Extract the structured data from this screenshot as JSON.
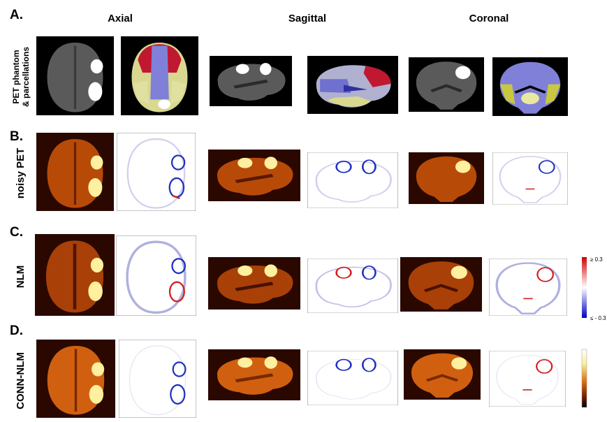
{
  "columns": [
    "Axial",
    "Sagittal",
    "Coronal"
  ],
  "panels": [
    {
      "label": "A.",
      "row_label": [
        "PET phantom",
        "& parcellations"
      ]
    },
    {
      "label": "B.",
      "row_label": [
        "noisy PET"
      ]
    },
    {
      "label": "C.",
      "row_label": [
        "NLM"
      ]
    },
    {
      "label": "D.",
      "row_label": [
        "CONN-NLM"
      ]
    }
  ],
  "colorbar": {
    "max_label": "≥ 0.3",
    "min_label": "≤ - 0.3"
  }
}
